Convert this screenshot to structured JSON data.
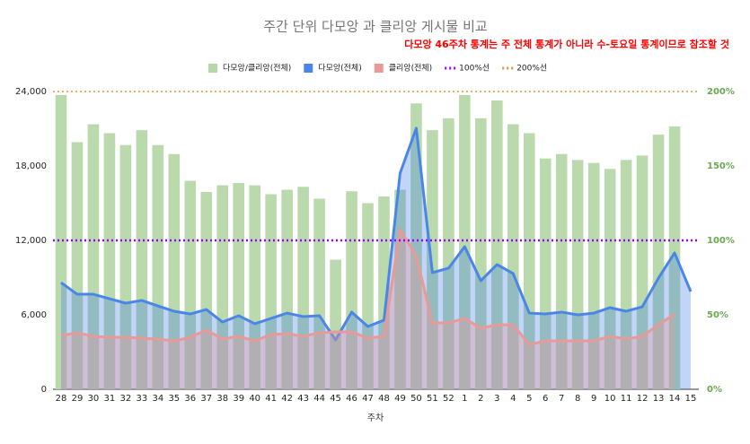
{
  "chart_data": {
    "type": "combo",
    "title": "주간 단위 다모앙 과 클리앙 게시물 비교",
    "annotation": "다모앙 46주차 통계는 주 전체 통계가 아니라 수-토요일 통계이므로 참조할 것",
    "xlabel": "주차",
    "categories": [
      "28",
      "29",
      "30",
      "31",
      "32",
      "33",
      "34",
      "35",
      "36",
      "37",
      "38",
      "39",
      "40",
      "41",
      "42",
      "43",
      "44",
      "45",
      "46",
      "47",
      "48",
      "49",
      "50",
      "51",
      "52",
      "1",
      "2",
      "3",
      "4",
      "5",
      "6",
      "7",
      "8",
      "9",
      "10",
      "11",
      "12",
      "13",
      "14",
      "15"
    ],
    "ylim": [
      0,
      24000
    ],
    "yticks": [
      0,
      {
        "value": 6000,
        "label": "6,000"
      },
      {
        "value": 12000,
        "label": "12,000"
      },
      {
        "value": 18000,
        "label": "18,000"
      },
      {
        "value": 24000,
        "label": "24,000"
      }
    ],
    "y2lim": [
      0,
      200
    ],
    "y2ticks": [
      {
        "value": 0,
        "label": "0%"
      },
      {
        "value": 50,
        "label": "50%"
      },
      {
        "value": 100,
        "label": "100%"
      },
      {
        "value": 150,
        "label": "150%"
      },
      {
        "value": 200,
        "label": "200%"
      }
    ],
    "series": [
      {
        "name": "다모앙/클리앙(전체)",
        "type": "bar",
        "axis": "y2",
        "color": "#b6d7a8",
        "values": [
          197.6,
          166,
          178,
          172,
          164,
          174,
          164,
          158,
          140,
          132.5,
          137,
          138.5,
          137,
          131,
          134,
          136,
          128,
          87,
          133,
          125,
          129.5,
          134,
          192,
          174,
          182,
          197.6,
          182,
          194,
          178,
          172,
          155,
          158,
          154,
          152,
          148,
          154,
          157,
          171,
          176.5,
          null
        ]
      },
      {
        "name": "다모앙(전체)",
        "type": "area",
        "color": "#4a86e8",
        "values": [
          8600,
          7660,
          7660,
          7300,
          6940,
          7160,
          6720,
          6290,
          6070,
          6430,
          5420,
          5930,
          5280,
          5710,
          6140,
          5860,
          5930,
          3980,
          6220,
          5060,
          5570,
          17420,
          21040,
          9400,
          9760,
          11490,
          8750,
          10050,
          9330,
          6140,
          6070,
          6220,
          6000,
          6140,
          6580,
          6290,
          6650,
          8960,
          10990,
          7880
        ]
      },
      {
        "name": "클리앙(전체)",
        "type": "area",
        "color": "#ea9999",
        "values": [
          4340,
          4550,
          4270,
          4190,
          4190,
          4120,
          4050,
          3900,
          4190,
          4770,
          4050,
          4270,
          3900,
          4410,
          4480,
          4270,
          4550,
          4630,
          4630,
          4120,
          4270,
          12870,
          10770,
          5350,
          5350,
          5710,
          4920,
          5200,
          5200,
          3610,
          3900,
          3900,
          3900,
          3900,
          4270,
          4050,
          4270,
          5200,
          6070,
          null
        ]
      },
      {
        "name": "100%선",
        "type": "reference",
        "axis": "y2",
        "color": "#9900ff",
        "value": 100
      },
      {
        "name": "200%선",
        "type": "reference",
        "axis": "y2",
        "color": "#e69138",
        "value": 200
      }
    ]
  }
}
